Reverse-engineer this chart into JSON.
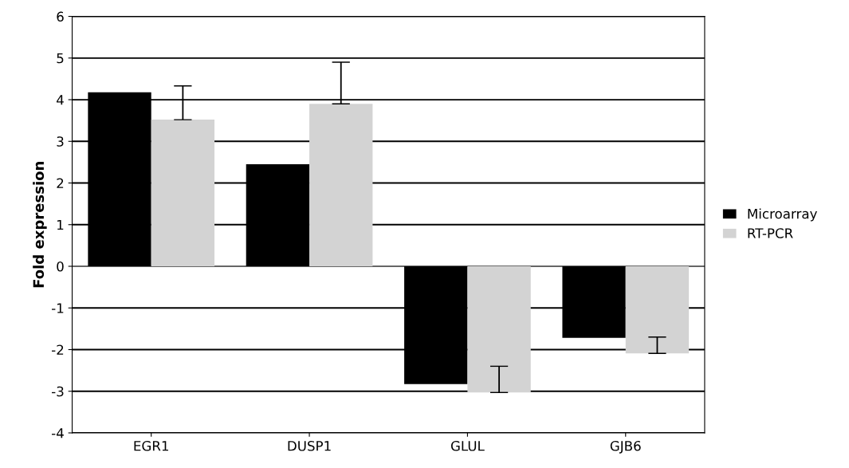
{
  "chart_data": {
    "type": "bar",
    "ylabel": "Fold expression",
    "categories": [
      "EGR1",
      "DUSP1",
      "GLUL",
      "GJB6"
    ],
    "series": [
      {
        "name": "Microarray",
        "color": "#000000",
        "values": [
          4.18,
          2.45,
          -2.83,
          -1.72
        ]
      },
      {
        "name": "RT-PCR",
        "color": "#d3d3d3",
        "values": [
          3.52,
          3.9,
          -3.03,
          -2.09
        ],
        "errors": [
          [
            3.52,
            4.33
          ],
          [
            3.9,
            4.9
          ],
          [
            -3.03,
            -2.4
          ],
          [
            -2.09,
            -1.7
          ]
        ]
      }
    ],
    "ylim": [
      -4,
      6
    ],
    "yticks": [
      -4,
      -3,
      -2,
      -1,
      0,
      1,
      2,
      3,
      4,
      5,
      6
    ],
    "grid": "y",
    "legend": "right"
  }
}
